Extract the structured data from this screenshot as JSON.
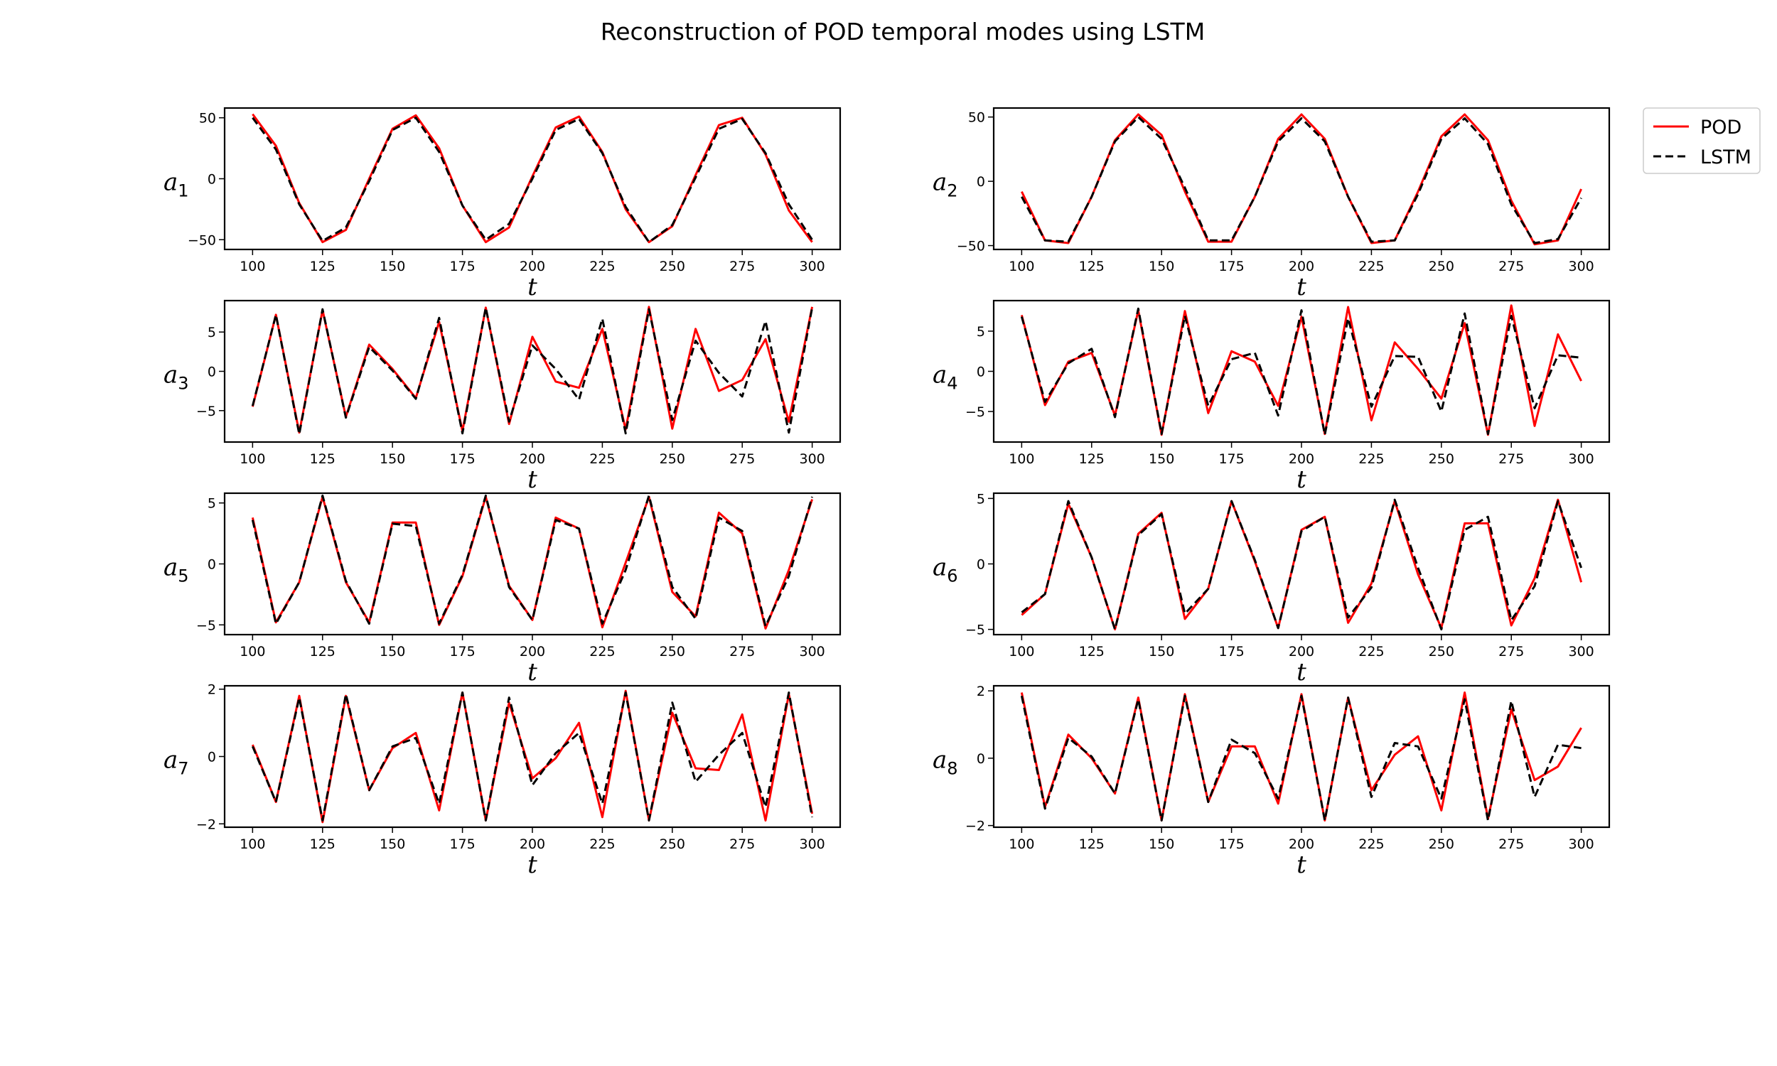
{
  "chart_data": {
    "type": "line",
    "title": "Reconstruction of POD temporal modes using LSTM",
    "legend": {
      "placement": "top-right outside",
      "entries": [
        {
          "name": "POD",
          "color": "#ff0000",
          "style": "solid"
        },
        {
          "name": "LSTM",
          "color": "#000000",
          "style": "dashed"
        }
      ]
    },
    "xlim": [
      90,
      310
    ],
    "xticks": [
      100,
      125,
      150,
      175,
      200,
      225,
      250,
      275,
      300
    ],
    "x": [
      100,
      108.33,
      116.67,
      125,
      133.33,
      141.67,
      150,
      158.33,
      166.67,
      175,
      183.33,
      191.67,
      200,
      208.33,
      216.67,
      225,
      233.33,
      241.67,
      250,
      258.33,
      266.67,
      275,
      283.33,
      291.67,
      300
    ],
    "subplots": [
      {
        "xlabel": "t",
        "ylabel_base": "a",
        "ylabel_sub": "1",
        "ylim": [
          -58,
          58
        ],
        "yticks": [
          -50,
          0,
          50
        ],
        "series": [
          {
            "name": "POD",
            "values": [
              53,
              27,
              -20,
              -52,
              -42,
              0,
              41,
              52,
              25,
              -22,
              -52,
              -40,
              2,
              42,
              51,
              22,
              -25,
              -52,
              -39,
              3,
              44,
              50,
              20,
              -26,
              -52
            ]
          },
          {
            "name": "LSTM",
            "values": [
              50,
              24,
              -21,
              -51,
              -40,
              -2,
              40,
              50,
              22,
              -22,
              -50,
              -37,
              0,
              40,
              49,
              21,
              -23,
              -52,
              -38,
              1,
              41,
              49,
              21,
              -21,
              -50
            ]
          }
        ]
      },
      {
        "xlabel": "t",
        "ylabel_base": "a",
        "ylabel_sub": "2",
        "ylim": [
          -53,
          57
        ],
        "yticks": [
          -50,
          0,
          50
        ],
        "series": [
          {
            "name": "POD",
            "values": [
              -8,
              -46,
              -48,
              -12,
              32,
              52,
              36,
              -8,
              -47,
              -47,
              -12,
              33,
              52,
              33,
              -12,
              -48,
              -46,
              -8,
              35,
              52,
              32,
              -15,
              -49,
              -46,
              -6
            ]
          },
          {
            "name": "LSTM",
            "values": [
              -12,
              -46,
              -47,
              -12,
              31,
              50,
              33,
              -5,
              -46,
              -46,
              -12,
              31,
              49,
              31,
              -12,
              -47,
              -46,
              -10,
              33,
              49,
              29,
              -18,
              -48,
              -45,
              -13
            ]
          }
        ]
      },
      {
        "xlabel": "t",
        "ylabel_base": "a",
        "ylabel_sub": "3",
        "ylim": [
          -9,
          9
        ],
        "yticks": [
          -5,
          0,
          5
        ],
        "series": [
          {
            "name": "POD",
            "values": [
              -4.5,
              7.2,
              -7.8,
              7.8,
              -5.8,
              3.4,
              0.3,
              -3.4,
              6.3,
              -7.6,
              8.1,
              -6.7,
              4.4,
              -1.3,
              -2.1,
              5.4,
              -7.4,
              8.2,
              -7.3,
              5.4,
              -2.5,
              -1.1,
              4.1,
              -6.4,
              8.2
            ]
          },
          {
            "name": "LSTM",
            "values": [
              -4.4,
              7.2,
              -8.0,
              7.9,
              -5.9,
              3.1,
              0.1,
              -3.5,
              6.8,
              -7.9,
              8.1,
              -6.4,
              3.3,
              0.3,
              -3.6,
              6.7,
              -7.9,
              7.9,
              -6.2,
              3.9,
              -0.2,
              -3.2,
              6.4,
              -7.8,
              8.1
            ]
          }
        ]
      },
      {
        "xlabel": "t",
        "ylabel_base": "a",
        "ylabel_sub": "4",
        "ylim": [
          -8.8,
          8.8
        ],
        "yticks": [
          -5,
          0,
          5
        ],
        "series": [
          {
            "name": "POD",
            "values": [
              7,
              -4.2,
              1.2,
              2.3,
              -5.5,
              7.6,
              -7.9,
              7.5,
              -5.2,
              2.5,
              1.2,
              -4.3,
              6.8,
              -7.8,
              8,
              -6.1,
              3.6,
              0.3,
              -3.4,
              6.0,
              -7.9,
              8.2,
              -6.8,
              4.6,
              -1.2
            ]
          },
          {
            "name": "LSTM",
            "values": [
              6.8,
              -3.8,
              1.0,
              2.8,
              -5.7,
              7.8,
              -7.8,
              6.9,
              -4.3,
              1.5,
              2.3,
              -5.5,
              7.6,
              -7.9,
              6.6,
              -4.4,
              1.9,
              1.8,
              -5.0,
              7.2,
              -7.8,
              6.9,
              -4.6,
              2.0,
              1.7
            ]
          }
        ]
      },
      {
        "xlabel": "t",
        "ylabel_base": "a",
        "ylabel_sub": "5",
        "ylim": [
          -5.8,
          5.8
        ],
        "yticks": [
          -5,
          0,
          5
        ],
        "series": [
          {
            "name": "POD",
            "values": [
              3.8,
              -4.8,
              -1.5,
              5.5,
              -1.5,
              -4.8,
              3.4,
              3.4,
              -5.0,
              -1.0,
              5.5,
              -1.8,
              -4.6,
              3.8,
              2.9,
              -5.2,
              0.1,
              5.5,
              -2.3,
              -4.3,
              4.2,
              2.5,
              -5.3,
              -0.5,
              5.3
            ]
          },
          {
            "name": "LSTM",
            "values": [
              3.6,
              -4.9,
              -1.5,
              5.6,
              -1.4,
              -4.9,
              3.3,
              3.1,
              -4.9,
              -0.9,
              5.6,
              -1.9,
              -4.6,
              3.6,
              2.9,
              -4.9,
              -0.5,
              5.6,
              -1.9,
              -4.5,
              3.8,
              2.7,
              -5.1,
              -1.0,
              5.5
            ]
          }
        ]
      },
      {
        "xlabel": "t",
        "ylabel_base": "a",
        "ylabel_sub": "6",
        "ylim": [
          -5.4,
          5.4
        ],
        "yticks": [
          -5,
          0,
          5
        ],
        "series": [
          {
            "name": "POD",
            "values": [
              -3.9,
              -2.3,
              4.6,
              0.5,
              -5.0,
              2.3,
              3.9,
              -4.2,
              -1.9,
              4.8,
              0.2,
              -4.9,
              2.6,
              3.6,
              -4.5,
              -1.5,
              4.8,
              -0.8,
              -4.9,
              3.1,
              3.1,
              -4.7,
              -1.1,
              4.9,
              -1.4
            ]
          },
          {
            "name": "LSTM",
            "values": [
              -3.7,
              -2.3,
              4.8,
              0.5,
              -5.0,
              2.2,
              3.8,
              -3.8,
              -1.9,
              4.8,
              0.3,
              -4.9,
              2.5,
              3.6,
              -4.1,
              -1.8,
              4.9,
              -0.3,
              -5.0,
              2.6,
              3.6,
              -4.3,
              -1.7,
              4.8,
              -0.3
            ]
          }
        ]
      },
      {
        "xlabel": "t",
        "ylabel_base": "a",
        "ylabel_sub": "7",
        "ylim": [
          -2.1,
          2.1
        ],
        "yticks": [
          -2,
          0,
          2
        ],
        "series": [
          {
            "name": "POD",
            "values": [
              0.35,
              -1.35,
              1.8,
              -1.95,
              1.8,
              -1.0,
              0.25,
              0.7,
              -1.6,
              1.9,
              -1.9,
              1.6,
              -0.65,
              -0.05,
              1.0,
              -1.8,
              1.95,
              -1.9,
              1.3,
              -0.35,
              -0.4,
              1.25,
              -1.9,
              1.85,
              -1.7
            ]
          },
          {
            "name": "LSTM",
            "values": [
              0.3,
              -1.35,
              1.75,
              -1.9,
              1.85,
              -1.0,
              0.3,
              0.55,
              -1.4,
              1.9,
              -1.9,
              1.75,
              -0.85,
              0.1,
              0.7,
              -1.4,
              1.9,
              -1.9,
              1.6,
              -0.75,
              0.05,
              0.7,
              -1.5,
              1.9,
              -1.8
            ]
          }
        ]
      },
      {
        "xlabel": "t",
        "ylabel_base": "a",
        "ylabel_sub": "8",
        "ylim": [
          -2.05,
          2.15
        ],
        "yticks": [
          -2,
          0,
          2
        ],
        "series": [
          {
            "name": "POD",
            "values": [
              1.95,
              -1.45,
              0.7,
              0.0,
              -1.05,
              1.8,
              -1.85,
              1.9,
              -1.3,
              0.35,
              0.35,
              -1.35,
              1.9,
              -1.85,
              1.8,
              -0.95,
              0.1,
              0.65,
              -1.55,
              1.95,
              -1.8,
              1.45,
              -0.65,
              -0.25,
              0.9
            ]
          },
          {
            "name": "LSTM",
            "values": [
              1.85,
              -1.5,
              0.6,
              0.05,
              -1.05,
              1.75,
              -1.85,
              1.85,
              -1.3,
              0.55,
              0.15,
              -1.2,
              1.85,
              -1.85,
              1.8,
              -1.15,
              0.45,
              0.35,
              -1.2,
              1.75,
              -1.85,
              1.7,
              -1.15,
              0.4,
              0.3
            ]
          }
        ]
      }
    ]
  }
}
